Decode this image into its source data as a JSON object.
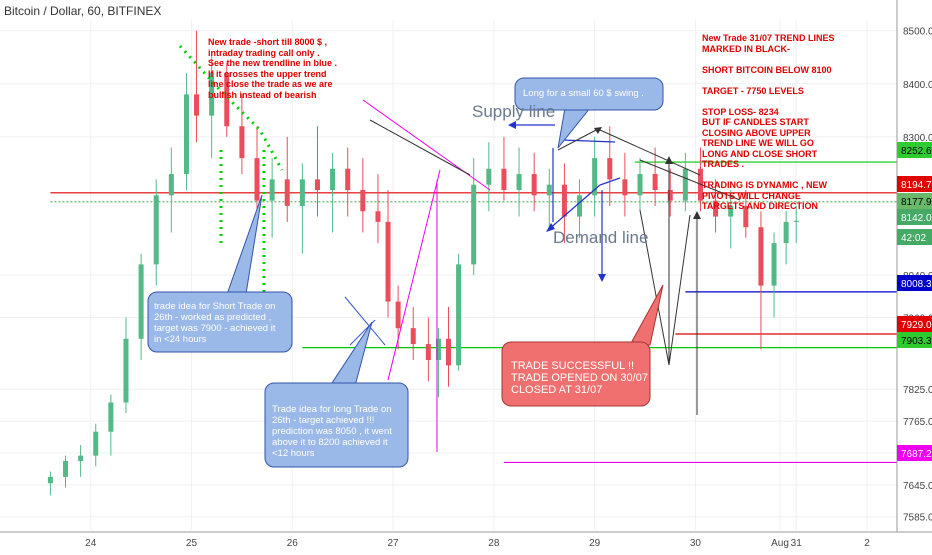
{
  "symbol": "Bitcoin / Dollar, 60, BITFINEX",
  "notes": {
    "top_left": "New trade  -short  till 8000 $ ,\nintraday trading call only .\nSee the new trendline in blue .\nIf it crosses the upper trend\nline close the trade as we are\nbullish instead of bearish",
    "top_right": "New Trade 31/07 TREND LINES\nMARKED IN BLACK-\n\nSHORT BITCOIN BELOW 8100\n\nTARGET - 7750 LEVELS\n\nSTOP LOSS- 8234\nBUT IF CANDLES START\nCLOSING ABOVE UPPER\nTREND LINE WE WILL GO\nLONG AND CLOSE SHORT\nTRADES .\n\nTRADING IS DYNAMIC , NEW\nPIVOTS WILL CHANGE\nTARGETS AND DIRECTION"
  },
  "callouts": {
    "swing": "Long for a small 60 $ swing .",
    "short_idea": " trade idea for Short Trade on\n26th - worked as predicted ,\ntarget was 7900 - achieved it\nin <24 hours",
    "long_idea": "Trade idea for long Trade on\n26th - target achieved !!!\nprediction was 8050 , it went\nabove it to 8200 achieved it\n<12 hours",
    "success": "TRADE SUCCESSFUL !!\nTRADE OPENED ON 30/07\nCLOSED AT 31/07"
  },
  "labels": {
    "supply": "Supply line",
    "demand": "Demand line"
  },
  "colors": {
    "up": "#53b987",
    "down": "#eb4d5c",
    "callout_blue": "#9ab8e8",
    "callout_red": "#f07070",
    "note_red": "#e00000"
  },
  "chart_data": {
    "type": "candlestick",
    "x_ticks": [
      "24",
      "25",
      "26",
      "27",
      "28",
      "29",
      "30",
      "31",
      "Aug",
      "2"
    ],
    "y_ticks": [
      7585.0,
      7645.0,
      7705.0,
      7765.0,
      7825.0,
      7960.0,
      8040.0,
      8300.0,
      8400.0,
      8500.0
    ],
    "ylim": [
      7560,
      8520
    ],
    "price_tags": [
      {
        "value": "8252.6",
        "color": "#2ecc2e",
        "text_color": "#000000"
      },
      {
        "value": "8194.7",
        "color": "#e00000",
        "text_color": "#ffffff"
      },
      {
        "value": "8177.9",
        "color": "#6ab86a",
        "text_color": "#000000"
      },
      {
        "value": "8142.0",
        "color": "#44aa66",
        "text_color": "#ffffff"
      },
      {
        "value": "42:02",
        "color": "#44aa66",
        "text_color": "#ffffff"
      },
      {
        "value": "8008.3",
        "color": "#0000cc",
        "text_color": "#ffffff"
      },
      {
        "value": "7929.0",
        "color": "#e00000",
        "text_color": "#ffffff"
      },
      {
        "value": "7903.3",
        "color": "#2ecc2e",
        "text_color": "#000000"
      },
      {
        "value": "7687.2",
        "color": "#ee00ee",
        "text_color": "#ffffff"
      }
    ],
    "price_levels": [
      {
        "value": 8252.6,
        "color": "#00c800",
        "from_day": 29.4
      },
      {
        "value": 8194.7,
        "color": "#e00000",
        "from_day": 23.6
      },
      {
        "value": 8177.9,
        "color": "#6ab86a",
        "from_day": 23.6,
        "dotted": true
      },
      {
        "value": 8008.3,
        "color": "#0000cc",
        "from_day": 29.9
      },
      {
        "value": 7929.0,
        "color": "#e00000",
        "from_day": 29.8
      },
      {
        "value": 7903.3,
        "color": "#00c800",
        "from_day": 26.1
      },
      {
        "value": 7687.2,
        "color": "#ee00ee",
        "from_day": 28.1
      }
    ],
    "candles": [
      {
        "t": 23.6,
        "o": 7648,
        "h": 7670,
        "l": 7625,
        "c": 7660
      },
      {
        "t": 23.75,
        "o": 7660,
        "h": 7700,
        "l": 7640,
        "c": 7690
      },
      {
        "t": 23.9,
        "o": 7690,
        "h": 7720,
        "l": 7660,
        "c": 7700
      },
      {
        "t": 24.05,
        "o": 7700,
        "h": 7760,
        "l": 7680,
        "c": 7745
      },
      {
        "t": 24.2,
        "o": 7745,
        "h": 7815,
        "l": 7700,
        "c": 7800
      },
      {
        "t": 24.35,
        "o": 7800,
        "h": 7960,
        "l": 7780,
        "c": 7920
      },
      {
        "t": 24.5,
        "o": 7920,
        "h": 8080,
        "l": 7880,
        "c": 8060
      },
      {
        "t": 24.65,
        "o": 8060,
        "h": 8220,
        "l": 8020,
        "c": 8190
      },
      {
        "t": 24.8,
        "o": 8190,
        "h": 8280,
        "l": 8120,
        "c": 8230
      },
      {
        "t": 24.95,
        "o": 8230,
        "h": 8420,
        "l": 8200,
        "c": 8380
      },
      {
        "t": 25.05,
        "o": 8380,
        "h": 8500,
        "l": 8290,
        "c": 8340
      },
      {
        "t": 25.2,
        "o": 8340,
        "h": 8460,
        "l": 8260,
        "c": 8420
      },
      {
        "t": 25.35,
        "o": 8420,
        "h": 8440,
        "l": 8300,
        "c": 8320
      },
      {
        "t": 25.5,
        "o": 8320,
        "h": 8380,
        "l": 8230,
        "c": 8260
      },
      {
        "t": 25.65,
        "o": 8260,
        "h": 8320,
        "l": 8150,
        "c": 8180
      },
      {
        "t": 25.8,
        "o": 8180,
        "h": 8260,
        "l": 8110,
        "c": 8220
      },
      {
        "t": 25.95,
        "o": 8220,
        "h": 8300,
        "l": 8140,
        "c": 8170
      },
      {
        "t": 26.1,
        "o": 8170,
        "h": 8250,
        "l": 8080,
        "c": 8220
      },
      {
        "t": 26.25,
        "o": 8220,
        "h": 8320,
        "l": 8150,
        "c": 8200
      },
      {
        "t": 26.4,
        "o": 8200,
        "h": 8270,
        "l": 8120,
        "c": 8240
      },
      {
        "t": 26.55,
        "o": 8240,
        "h": 8280,
        "l": 8150,
        "c": 8200
      },
      {
        "t": 26.7,
        "o": 8200,
        "h": 8260,
        "l": 8120,
        "c": 8160
      },
      {
        "t": 26.85,
        "o": 8160,
        "h": 8230,
        "l": 8100,
        "c": 8140
      },
      {
        "t": 26.95,
        "o": 8140,
        "h": 8200,
        "l": 7960,
        "c": 7990
      },
      {
        "t": 27.05,
        "o": 7990,
        "h": 8020,
        "l": 7900,
        "c": 7940
      },
      {
        "t": 27.2,
        "o": 7940,
        "h": 7980,
        "l": 7880,
        "c": 7910
      },
      {
        "t": 27.35,
        "o": 7910,
        "h": 7960,
        "l": 7840,
        "c": 7880
      },
      {
        "t": 27.45,
        "o": 7880,
        "h": 7940,
        "l": 7810,
        "c": 7920
      },
      {
        "t": 27.55,
        "o": 7920,
        "h": 7980,
        "l": 7830,
        "c": 7870
      },
      {
        "t": 27.65,
        "o": 7870,
        "h": 8080,
        "l": 7860,
        "c": 8060
      },
      {
        "t": 27.8,
        "o": 8060,
        "h": 8260,
        "l": 8040,
        "c": 8210
      },
      {
        "t": 27.95,
        "o": 8210,
        "h": 8290,
        "l": 8160,
        "c": 8240
      },
      {
        "t": 28.1,
        "o": 8240,
        "h": 8300,
        "l": 8180,
        "c": 8200
      },
      {
        "t": 28.25,
        "o": 8200,
        "h": 8280,
        "l": 8150,
        "c": 8230
      },
      {
        "t": 28.4,
        "o": 8230,
        "h": 8270,
        "l": 8160,
        "c": 8190
      },
      {
        "t": 28.55,
        "o": 8190,
        "h": 8240,
        "l": 8130,
        "c": 8210
      },
      {
        "t": 28.7,
        "o": 8210,
        "h": 8250,
        "l": 8100,
        "c": 8150
      },
      {
        "t": 28.85,
        "o": 8150,
        "h": 8220,
        "l": 8110,
        "c": 8190
      },
      {
        "t": 29.0,
        "o": 8190,
        "h": 8300,
        "l": 8150,
        "c": 8260
      },
      {
        "t": 29.15,
        "o": 8260,
        "h": 8320,
        "l": 8170,
        "c": 8220
      },
      {
        "t": 29.3,
        "o": 8220,
        "h": 8270,
        "l": 8150,
        "c": 8190
      },
      {
        "t": 29.45,
        "o": 8190,
        "h": 8260,
        "l": 8160,
        "c": 8230
      },
      {
        "t": 29.6,
        "o": 8230,
        "h": 8280,
        "l": 8170,
        "c": 8200
      },
      {
        "t": 29.75,
        "o": 8200,
        "h": 8240,
        "l": 8150,
        "c": 8180
      },
      {
        "t": 29.9,
        "o": 8180,
        "h": 8270,
        "l": 8160,
        "c": 8240
      },
      {
        "t": 30.05,
        "o": 8240,
        "h": 8280,
        "l": 8160,
        "c": 8180
      },
      {
        "t": 30.2,
        "o": 8180,
        "h": 8220,
        "l": 8120,
        "c": 8150
      },
      {
        "t": 30.35,
        "o": 8150,
        "h": 8200,
        "l": 8090,
        "c": 8170
      },
      {
        "t": 30.5,
        "o": 8170,
        "h": 8200,
        "l": 8110,
        "c": 8130
      },
      {
        "t": 30.65,
        "o": 8130,
        "h": 8160,
        "l": 7900,
        "c": 8020
      },
      {
        "t": 30.78,
        "o": 8020,
        "h": 8120,
        "l": 7960,
        "c": 8100
      },
      {
        "t": 30.9,
        "o": 8100,
        "h": 8160,
        "l": 8060,
        "c": 8140
      },
      {
        "t": 31.0,
        "o": 8140,
        "h": 8170,
        "l": 8100,
        "c": 8142
      }
    ]
  }
}
